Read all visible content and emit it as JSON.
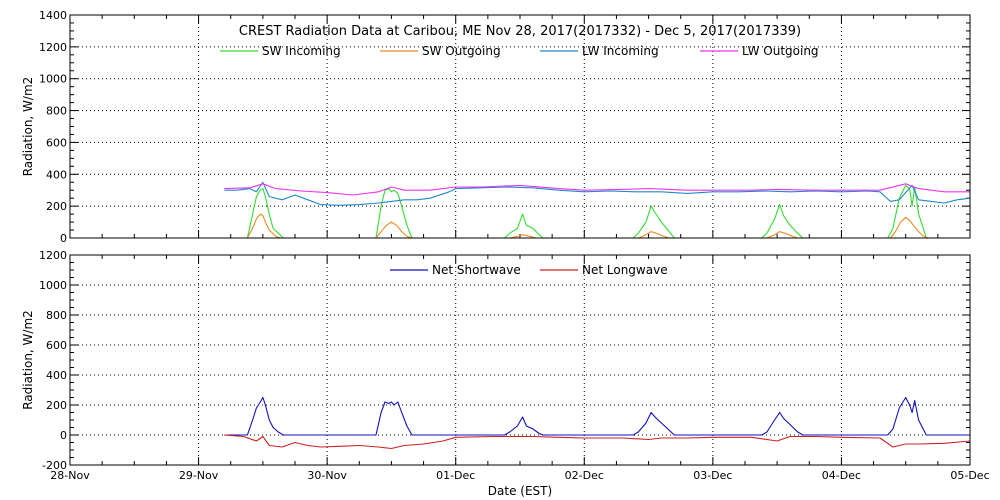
{
  "chart_data": [
    {
      "type": "line",
      "title": "CREST Radiation Data at Caribou, ME   Nov 28, 2017(2017332) - Dec  5, 2017(2017339)",
      "ylabel": "Radiation, W/m2",
      "xlabel": "",
      "x_unit": "day",
      "xlim": [
        0,
        7
      ],
      "ylim": [
        0,
        1400
      ],
      "yticks": [
        "0",
        "200",
        "400",
        "600",
        "800",
        "1000",
        "1200",
        "1400"
      ],
      "xticks": [
        "28-Nov",
        "29-Nov",
        "30-Nov",
        "01-Dec",
        "02-Dec",
        "03-Dec",
        "04-Dec",
        "05-Dec"
      ],
      "grid": true,
      "legend": "top-center",
      "series": [
        {
          "name": "SW Incoming",
          "color": "#33dd33",
          "points": [
            [
              1.2,
              0
            ],
            [
              1.38,
              0
            ],
            [
              1.42,
              150
            ],
            [
              1.45,
              260
            ],
            [
              1.48,
              300
            ],
            [
              1.5,
              310
            ],
            [
              1.52,
              260
            ],
            [
              1.55,
              150
            ],
            [
              1.58,
              60
            ],
            [
              1.62,
              30
            ],
            [
              1.66,
              0
            ],
            [
              2.0,
              0
            ],
            [
              2.38,
              0
            ],
            [
              2.42,
              200
            ],
            [
              2.45,
              300
            ],
            [
              2.48,
              310
            ],
            [
              2.5,
              290
            ],
            [
              2.52,
              300
            ],
            [
              2.55,
              280
            ],
            [
              2.58,
              200
            ],
            [
              2.62,
              80
            ],
            [
              2.66,
              0
            ],
            [
              3.38,
              0
            ],
            [
              3.42,
              30
            ],
            [
              3.48,
              60
            ],
            [
              3.52,
              150
            ],
            [
              3.55,
              80
            ],
            [
              3.6,
              60
            ],
            [
              3.65,
              20
            ],
            [
              3.68,
              0
            ],
            [
              4.38,
              0
            ],
            [
              4.42,
              30
            ],
            [
              4.48,
              100
            ],
            [
              4.52,
              200
            ],
            [
              4.55,
              160
            ],
            [
              4.6,
              100
            ],
            [
              4.65,
              50
            ],
            [
              4.7,
              0
            ],
            [
              5.38,
              0
            ],
            [
              5.42,
              30
            ],
            [
              5.48,
              120
            ],
            [
              5.52,
              210
            ],
            [
              5.55,
              140
            ],
            [
              5.6,
              80
            ],
            [
              5.66,
              30
            ],
            [
              5.7,
              0
            ],
            [
              6.36,
              0
            ],
            [
              6.4,
              60
            ],
            [
              6.45,
              250
            ],
            [
              6.5,
              330
            ],
            [
              6.53,
              310
            ],
            [
              6.55,
              200
            ],
            [
              6.57,
              320
            ],
            [
              6.6,
              150
            ],
            [
              6.63,
              80
            ],
            [
              6.66,
              0
            ],
            [
              7.0,
              0
            ]
          ]
        },
        {
          "name": "SW Outgoing",
          "color": "#ee8822",
          "points": [
            [
              1.2,
              0
            ],
            [
              1.38,
              0
            ],
            [
              1.42,
              60
            ],
            [
              1.45,
              120
            ],
            [
              1.48,
              150
            ],
            [
              1.5,
              140
            ],
            [
              1.52,
              100
            ],
            [
              1.55,
              50
            ],
            [
              1.6,
              10
            ],
            [
              1.64,
              0
            ],
            [
              2.38,
              0
            ],
            [
              2.42,
              40
            ],
            [
              2.46,
              80
            ],
            [
              2.5,
              100
            ],
            [
              2.54,
              80
            ],
            [
              2.58,
              40
            ],
            [
              2.62,
              10
            ],
            [
              2.66,
              0
            ],
            [
              3.42,
              0
            ],
            [
              3.48,
              10
            ],
            [
              3.52,
              20
            ],
            [
              3.58,
              10
            ],
            [
              3.62,
              0
            ],
            [
              4.42,
              0
            ],
            [
              4.48,
              20
            ],
            [
              4.52,
              40
            ],
            [
              4.56,
              30
            ],
            [
              4.62,
              10
            ],
            [
              4.66,
              0
            ],
            [
              5.42,
              0
            ],
            [
              5.48,
              20
            ],
            [
              5.52,
              40
            ],
            [
              5.56,
              30
            ],
            [
              5.62,
              10
            ],
            [
              5.66,
              0
            ],
            [
              6.38,
              0
            ],
            [
              6.42,
              40
            ],
            [
              6.46,
              100
            ],
            [
              6.5,
              130
            ],
            [
              6.53,
              110
            ],
            [
              6.56,
              80
            ],
            [
              6.6,
              40
            ],
            [
              6.64,
              10
            ],
            [
              6.68,
              0
            ],
            [
              7.0,
              0
            ]
          ]
        },
        {
          "name": "LW Incoming",
          "color": "#2288cc",
          "points": [
            [
              1.2,
              300
            ],
            [
              1.3,
              300
            ],
            [
              1.4,
              310
            ],
            [
              1.45,
              290
            ],
            [
              1.5,
              350
            ],
            [
              1.55,
              260
            ],
            [
              1.65,
              240
            ],
            [
              1.75,
              270
            ],
            [
              1.85,
              240
            ],
            [
              1.95,
              210
            ],
            [
              2.1,
              205
            ],
            [
              2.25,
              210
            ],
            [
              2.4,
              220
            ],
            [
              2.5,
              230
            ],
            [
              2.6,
              240
            ],
            [
              2.7,
              240
            ],
            [
              2.8,
              250
            ],
            [
              2.95,
              290
            ],
            [
              3.0,
              310
            ],
            [
              3.2,
              315
            ],
            [
              3.4,
              320
            ],
            [
              3.6,
              315
            ],
            [
              3.8,
              300
            ],
            [
              4.0,
              290
            ],
            [
              4.2,
              295
            ],
            [
              4.4,
              290
            ],
            [
              4.6,
              290
            ],
            [
              4.8,
              280
            ],
            [
              5.0,
              290
            ],
            [
              5.2,
              290
            ],
            [
              5.4,
              295
            ],
            [
              5.6,
              290
            ],
            [
              5.8,
              295
            ],
            [
              6.0,
              290
            ],
            [
              6.2,
              295
            ],
            [
              6.3,
              290
            ],
            [
              6.38,
              230
            ],
            [
              6.45,
              240
            ],
            [
              6.55,
              330
            ],
            [
              6.6,
              240
            ],
            [
              6.7,
              230
            ],
            [
              6.8,
              220
            ],
            [
              6.9,
              240
            ],
            [
              7.0,
              250
            ]
          ]
        },
        {
          "name": "LW Outgoing",
          "color": "#ee33ee",
          "points": [
            [
              1.2,
              310
            ],
            [
              1.4,
              315
            ],
            [
              1.5,
              340
            ],
            [
              1.6,
              310
            ],
            [
              1.8,
              295
            ],
            [
              2.0,
              285
            ],
            [
              2.2,
              270
            ],
            [
              2.4,
              290
            ],
            [
              2.5,
              320
            ],
            [
              2.6,
              300
            ],
            [
              2.8,
              300
            ],
            [
              3.0,
              320
            ],
            [
              3.2,
              320
            ],
            [
              3.5,
              330
            ],
            [
              3.8,
              310
            ],
            [
              4.0,
              300
            ],
            [
              4.3,
              305
            ],
            [
              4.5,
              310
            ],
            [
              4.8,
              300
            ],
            [
              5.0,
              300
            ],
            [
              5.3,
              300
            ],
            [
              5.5,
              305
            ],
            [
              5.8,
              300
            ],
            [
              6.0,
              300
            ],
            [
              6.3,
              300
            ],
            [
              6.5,
              340
            ],
            [
              6.6,
              310
            ],
            [
              6.8,
              290
            ],
            [
              7.0,
              290
            ]
          ]
        }
      ]
    },
    {
      "type": "line",
      "title": "",
      "ylabel": "Radiation, W/m2",
      "xlabel": "Date (EST)",
      "x_unit": "day",
      "xlim": [
        0,
        7
      ],
      "ylim": [
        -200,
        1200
      ],
      "yticks": [
        "-200",
        "0",
        "200",
        "400",
        "600",
        "800",
        "1000",
        "1200"
      ],
      "xticks": [
        "28-Nov",
        "29-Nov",
        "30-Nov",
        "01-Dec",
        "02-Dec",
        "03-Dec",
        "04-Dec",
        "05-Dec"
      ],
      "grid": true,
      "legend": "top-center",
      "series": [
        {
          "name": "Net Shortwave",
          "color": "#1111bb",
          "points": [
            [
              1.2,
              0
            ],
            [
              1.38,
              0
            ],
            [
              1.42,
              100
            ],
            [
              1.45,
              180
            ],
            [
              1.48,
              220
            ],
            [
              1.5,
              250
            ],
            [
              1.52,
              200
            ],
            [
              1.55,
              100
            ],
            [
              1.58,
              50
            ],
            [
              1.62,
              20
            ],
            [
              1.66,
              0
            ],
            [
              2.0,
              0
            ],
            [
              2.38,
              0
            ],
            [
              2.42,
              150
            ],
            [
              2.45,
              220
            ],
            [
              2.48,
              210
            ],
            [
              2.5,
              220
            ],
            [
              2.52,
              200
            ],
            [
              2.55,
              220
            ],
            [
              2.58,
              150
            ],
            [
              2.62,
              60
            ],
            [
              2.66,
              0
            ],
            [
              3.38,
              0
            ],
            [
              3.42,
              20
            ],
            [
              3.48,
              60
            ],
            [
              3.52,
              120
            ],
            [
              3.55,
              60
            ],
            [
              3.6,
              40
            ],
            [
              3.65,
              10
            ],
            [
              3.68,
              0
            ],
            [
              4.38,
              0
            ],
            [
              4.42,
              20
            ],
            [
              4.48,
              80
            ],
            [
              4.52,
              150
            ],
            [
              4.55,
              120
            ],
            [
              4.6,
              80
            ],
            [
              4.65,
              40
            ],
            [
              4.7,
              0
            ],
            [
              5.38,
              0
            ],
            [
              5.42,
              20
            ],
            [
              5.48,
              100
            ],
            [
              5.52,
              150
            ],
            [
              5.55,
              110
            ],
            [
              5.6,
              70
            ],
            [
              5.66,
              20
            ],
            [
              5.7,
              0
            ],
            [
              6.36,
              0
            ],
            [
              6.4,
              40
            ],
            [
              6.45,
              180
            ],
            [
              6.5,
              250
            ],
            [
              6.53,
              200
            ],
            [
              6.55,
              150
            ],
            [
              6.57,
              230
            ],
            [
              6.6,
              100
            ],
            [
              6.63,
              50
            ],
            [
              6.66,
              0
            ],
            [
              7.0,
              0
            ]
          ]
        },
        {
          "name": "Net Longwave",
          "color": "#cc2222",
          "points": [
            [
              1.2,
              0
            ],
            [
              1.35,
              -10
            ],
            [
              1.45,
              -40
            ],
            [
              1.5,
              -10
            ],
            [
              1.55,
              -70
            ],
            [
              1.65,
              -80
            ],
            [
              1.75,
              -50
            ],
            [
              1.85,
              -70
            ],
            [
              1.95,
              -80
            ],
            [
              2.1,
              -75
            ],
            [
              2.25,
              -70
            ],
            [
              2.4,
              -80
            ],
            [
              2.5,
              -90
            ],
            [
              2.6,
              -70
            ],
            [
              2.75,
              -60
            ],
            [
              2.9,
              -40
            ],
            [
              3.0,
              -15
            ],
            [
              3.3,
              -10
            ],
            [
              3.6,
              -10
            ],
            [
              3.8,
              -15
            ],
            [
              4.0,
              -20
            ],
            [
              4.3,
              -20
            ],
            [
              4.5,
              -30
            ],
            [
              4.6,
              -20
            ],
            [
              4.8,
              -20
            ],
            [
              5.0,
              -15
            ],
            [
              5.3,
              -15
            ],
            [
              5.5,
              -40
            ],
            [
              5.6,
              -10
            ],
            [
              5.8,
              -10
            ],
            [
              6.0,
              -15
            ],
            [
              6.3,
              -20
            ],
            [
              6.4,
              -80
            ],
            [
              6.5,
              -60
            ],
            [
              6.6,
              -60
            ],
            [
              6.8,
              -55
            ],
            [
              7.0,
              -40
            ]
          ]
        }
      ]
    }
  ]
}
